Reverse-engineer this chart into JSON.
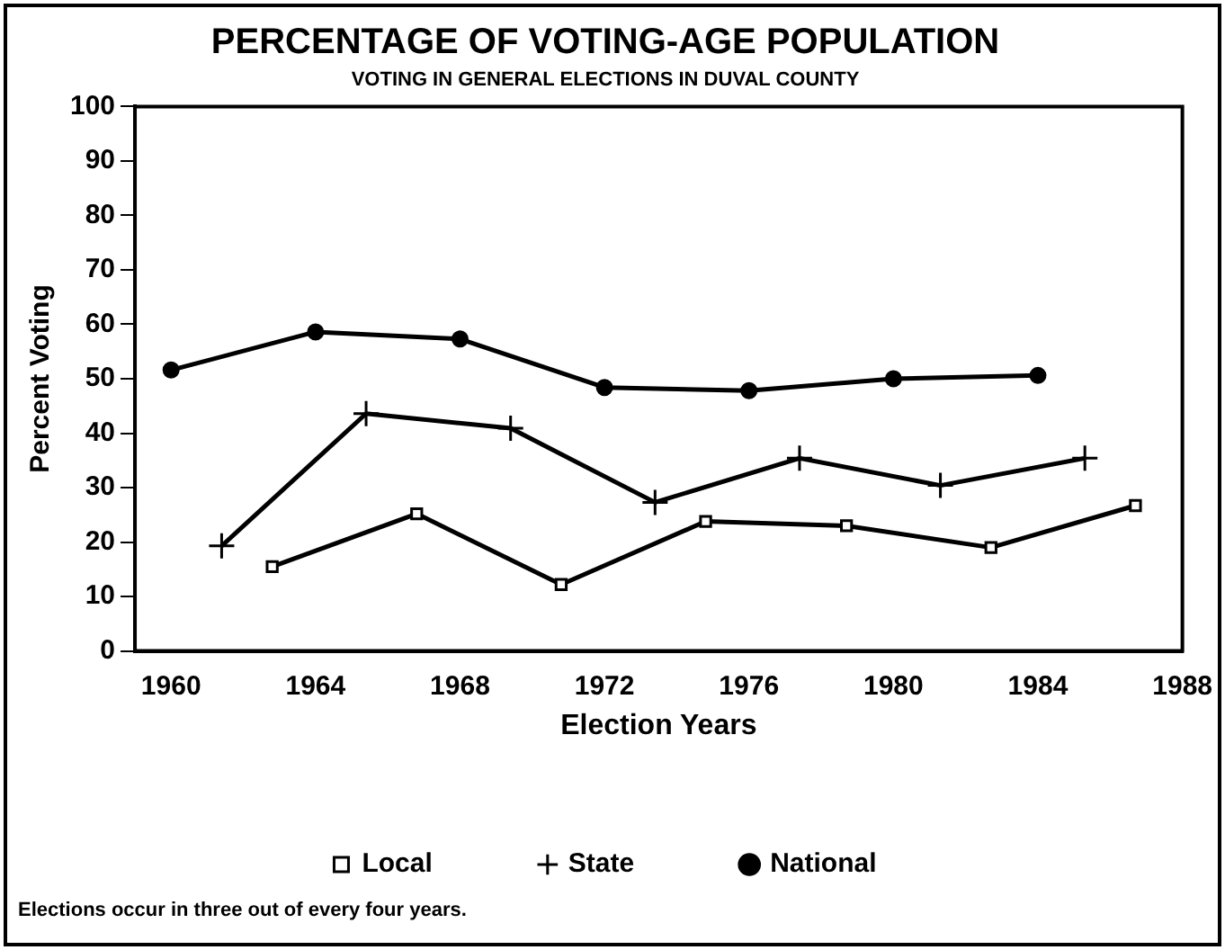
{
  "chart_data": {
    "type": "line",
    "title": "PERCENTAGE OF VOTING-AGE POPULATION",
    "subtitle": "VOTING IN GENERAL ELECTIONS IN DUVAL COUNTY",
    "xlabel": "Election Years",
    "ylabel": "Percent Voting",
    "xlim": [
      1959,
      1988
    ],
    "xticks": [
      1960,
      1964,
      1968,
      1972,
      1976,
      1980,
      1984,
      1988
    ],
    "ylim": [
      0,
      100
    ],
    "yticks": [
      0,
      10,
      20,
      30,
      40,
      50,
      60,
      70,
      80,
      90,
      100
    ],
    "grid": false,
    "legend": "bottom",
    "line_style": "solid",
    "annotations": [
      "Elections occur in three out of every four years."
    ],
    "series": [
      {
        "name": "Local",
        "color": "#000000",
        "marker": "square",
        "x": [
          1962.8,
          1966.8,
          1970.8,
          1974.8,
          1978.7,
          1982.7,
          1986.7
        ],
        "values": [
          15.5,
          25.2,
          12.2,
          23.8,
          23,
          19,
          26.7
        ]
      },
      {
        "name": "State",
        "color": "#000000",
        "marker": "cross",
        "x": [
          1961.4,
          1965.4,
          1969.4,
          1973.4,
          1977.4,
          1981.3,
          1985.3
        ],
        "values": [
          19.3,
          43.6,
          40.9,
          27.3,
          35.4,
          30.4,
          35.4
        ]
      },
      {
        "name": "National",
        "color": "#000000",
        "marker": "circle",
        "x": [
          1960,
          1964,
          1968,
          1972,
          1976,
          1980,
          1984
        ],
        "values": [
          51.6,
          58.6,
          57.3,
          48.4,
          47.8,
          50,
          50.6
        ]
      }
    ]
  }
}
